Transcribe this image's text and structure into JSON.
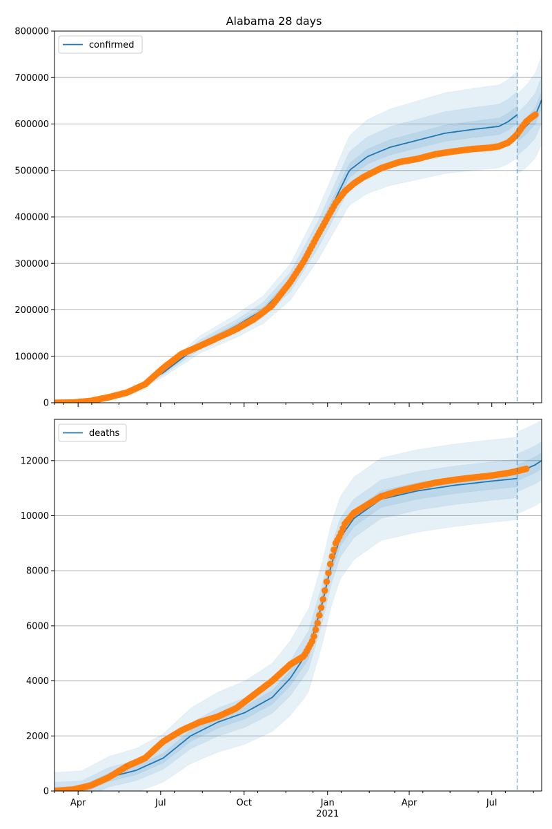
{
  "chart_data": [
    {
      "type": "line",
      "title": "Alabama 28 days",
      "ylim": [
        0,
        800000
      ],
      "yticks": [
        0,
        100000,
        200000,
        300000,
        400000,
        500000,
        600000,
        700000,
        800000
      ],
      "ytick_labels": [
        "0",
        "100000",
        "200000",
        "300000",
        "400000",
        "500000",
        "600000",
        "700000",
        "800000"
      ],
      "xlim": [
        0,
        537
      ],
      "grid": "horizontal",
      "legend_position": "upper-left",
      "legend": [
        {
          "label": "confirmed",
          "color": "#1f77b4"
        }
      ],
      "vline_x": 510,
      "model": {
        "name": "confirmed",
        "x": [
          0,
          30,
          60,
          90,
          120,
          160,
          200,
          230,
          260,
          290,
          310,
          325,
          345,
          370,
          400,
          430,
          460,
          490,
          500,
          510
        ],
        "y": [
          0,
          2000,
          12000,
          30000,
          65000,
          125000,
          165000,
          200000,
          260000,
          360000,
          440000,
          500000,
          530000,
          550000,
          565000,
          580000,
          588000,
          595000,
          605000,
          620000
        ],
        "bands_rel": [
          0.03,
          0.08,
          0.15
        ],
        "forecast_x": [
          510,
          520,
          530,
          537
        ],
        "forecast_y": [
          578000,
          595000,
          618000,
          652000
        ]
      },
      "observed": {
        "x": [
          0,
          20,
          40,
          60,
          80,
          100,
          120,
          140,
          160,
          180,
          200,
          220,
          240,
          260,
          275,
          290,
          300,
          310,
          320,
          330,
          340,
          350,
          360,
          380,
          400,
          420,
          440,
          460,
          480,
          490,
          500,
          505,
          510,
          515,
          520,
          525,
          530
        ],
        "y": [
          0,
          500,
          4000,
          12000,
          22000,
          40000,
          75000,
          105000,
          122000,
          140000,
          158000,
          180000,
          210000,
          260000,
          305000,
          360000,
          395000,
          430000,
          455000,
          472000,
          485000,
          495000,
          505000,
          518000,
          525000,
          535000,
          541000,
          546000,
          549000,
          552000,
          560000,
          568000,
          578000,
          592000,
          605000,
          613000,
          620000
        ]
      }
    },
    {
      "type": "line",
      "ylim": [
        0,
        13500
      ],
      "yticks": [
        0,
        2000,
        4000,
        6000,
        8000,
        10000,
        12000
      ],
      "ytick_labels": [
        "0",
        "2000",
        "4000",
        "6000",
        "8000",
        "10000",
        "12000"
      ],
      "xlim": [
        0,
        537
      ],
      "grid": "horizontal",
      "legend_position": "upper-left",
      "legend": [
        {
          "label": "deaths",
          "color": "#1f77b4"
        }
      ],
      "vline_x": 510,
      "model": {
        "name": "deaths",
        "x": [
          0,
          30,
          60,
          90,
          120,
          150,
          180,
          210,
          240,
          260,
          280,
          295,
          305,
          315,
          330,
          360,
          400,
          440,
          480,
          510
        ],
        "y": [
          0,
          50,
          500,
          750,
          1200,
          2000,
          2500,
          2850,
          3400,
          4100,
          5100,
          6800,
          8200,
          9200,
          9900,
          10600,
          10900,
          11100,
          11250,
          11350
        ],
        "bands_abs": [
          300,
          700,
          1500
        ],
        "forecast_x": [
          510,
          520,
          530,
          537
        ],
        "forecast_y": [
          11550,
          11700,
          11850,
          12000
        ]
      },
      "observed": {
        "x": [
          0,
          20,
          40,
          60,
          80,
          100,
          120,
          140,
          160,
          180,
          200,
          220,
          240,
          260,
          275,
          285,
          290,
          295,
          300,
          305,
          310,
          315,
          320,
          330,
          340,
          350,
          360,
          380,
          400,
          420,
          440,
          460,
          480,
          500,
          510,
          520
        ],
        "y": [
          0,
          50,
          200,
          500,
          900,
          1200,
          1800,
          2200,
          2500,
          2700,
          3000,
          3500,
          4000,
          4600,
          4900,
          5500,
          6100,
          6800,
          7600,
          8400,
          9000,
          9300,
          9700,
          10100,
          10300,
          10500,
          10700,
          10900,
          11050,
          11200,
          11300,
          11380,
          11450,
          11550,
          11620,
          11700
        ]
      },
      "x_axis": {
        "tick_labels": [
          {
            "x": 26,
            "label": "Apr"
          },
          {
            "x": 117,
            "label": "Jul"
          },
          {
            "x": 209,
            "label": "Oct"
          },
          {
            "x": 301,
            "label": "Jan"
          },
          {
            "x": 391,
            "label": "Apr"
          },
          {
            "x": 482,
            "label": "Jul"
          }
        ],
        "year_label": {
          "x": 301,
          "label": "2021"
        }
      }
    }
  ]
}
